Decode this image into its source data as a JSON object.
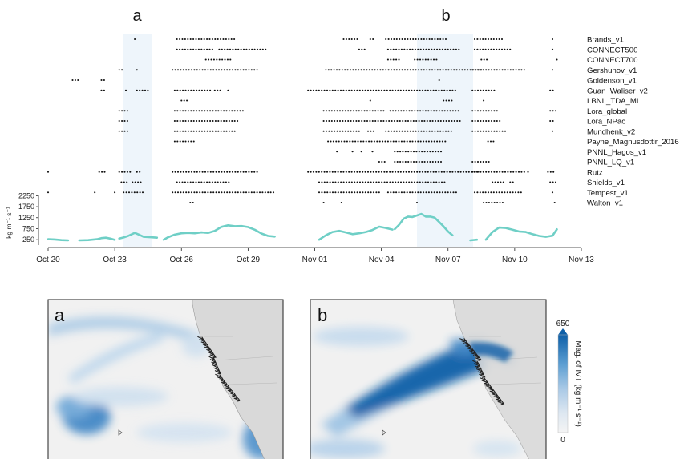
{
  "figure": {
    "panel_labels": [
      "a",
      "b"
    ],
    "map_panel_labels": [
      "a",
      "b"
    ]
  },
  "chart_data": [
    {
      "type": "scatter",
      "subtype": "event-timeline",
      "x_ticks": [
        "Oct 20",
        "Oct 23",
        "Oct 26",
        "Oct 29",
        "Nov 01",
        "Nov 04",
        "Nov 07",
        "Nov 10",
        "Nov 13"
      ],
      "x_range": [
        "2023-10-20",
        "2023-11-13"
      ],
      "highlight_windows": [
        {
          "label": "a",
          "start": "2023-10-23.3",
          "end": "2023-10-24.6"
        },
        {
          "label": "b",
          "start": "2023-11-05.8",
          "end": "2023-11-08.2"
        }
      ],
      "series": [
        {
          "name": "Brands_v1",
          "segments": [
            [
              23.9,
              24.0
            ],
            [
              25.8,
              28.4
            ],
            [
              33.3,
              34.0
            ],
            [
              34.5,
              34.7
            ],
            [
              35.2,
              38.0
            ],
            [
              39.2,
              40.5
            ],
            [
              42.7,
              42.8
            ]
          ]
        },
        {
          "name": "CONNECT500",
          "segments": [
            [
              25.8,
              27.4
            ],
            [
              27.7,
              29.8
            ],
            [
              34.0,
              34.3
            ],
            [
              35.3,
              38.5
            ],
            [
              39.2,
              40.8
            ],
            [
              42.7,
              42.8
            ]
          ]
        },
        {
          "name": "CONNECT700",
          "segments": [
            [
              27.1,
              28.3
            ],
            [
              35.3,
              35.8
            ],
            [
              36.5,
              37.6
            ],
            [
              39.5,
              39.8
            ],
            [
              42.9,
              42.9
            ]
          ]
        },
        {
          "name": "Gershunov_v1",
          "segments": [
            [
              23.2,
              23.4
            ],
            [
              24.0,
              24.1
            ],
            [
              25.6,
              29.5
            ],
            [
              32.5,
              39.5
            ],
            [
              39.1,
              41.5
            ],
            [
              42.7,
              42.8
            ]
          ]
        },
        {
          "name": "Goldenson_v1",
          "segments": [
            [
              21.1,
              21.4
            ],
            [
              22.4,
              22.6
            ],
            [
              37.6,
              37.7
            ]
          ]
        },
        {
          "name": "Guan_Waliser_v2",
          "segments": [
            [
              22.4,
              22.6
            ],
            [
              23.5,
              23.6
            ],
            [
              24.0,
              24.5
            ],
            [
              25.7,
              27.3
            ],
            [
              27.5,
              27.8
            ],
            [
              28.1,
              28.2
            ],
            [
              31.7,
              38.4
            ],
            [
              39.1,
              40.2
            ],
            [
              42.6,
              42.8
            ]
          ]
        },
        {
          "name": "LBNL_TDA_ML",
          "segments": [
            [
              26.0,
              26.3
            ],
            [
              34.5,
              34.6
            ],
            [
              37.8,
              38.2
            ],
            [
              39.6,
              39.7
            ]
          ]
        },
        {
          "name": "Lora_global",
          "segments": [
            [
              23.2,
              23.6
            ],
            [
              25.7,
              28.8
            ],
            [
              32.4,
              35.2
            ],
            [
              35.4,
              38.5
            ],
            [
              39.1,
              40.3
            ],
            [
              42.6,
              42.9
            ]
          ]
        },
        {
          "name": "Lora_NPac",
          "segments": [
            [
              23.2,
              23.6
            ],
            [
              25.7,
              28.6
            ],
            [
              32.4,
              38.6
            ],
            [
              39.1,
              40.4
            ],
            [
              42.6,
              42.8
            ]
          ]
        },
        {
          "name": "Mundhenk_v2",
          "segments": [
            [
              23.2,
              23.6
            ],
            [
              25.7,
              28.5
            ],
            [
              32.4,
              34.0
            ],
            [
              34.4,
              34.7
            ],
            [
              35.2,
              38.2
            ],
            [
              39.1,
              40.6
            ],
            [
              42.7,
              42.8
            ]
          ]
        },
        {
          "name": "Payne_Magnusdottir_2016",
          "segments": [
            [
              25.7,
              26.6
            ],
            [
              32.6,
              37.9
            ],
            [
              39.8,
              40.1
            ]
          ]
        },
        {
          "name": "PNNL_Hagos_v1",
          "segments": [
            [
              33.0,
              33.1
            ],
            [
              33.7,
              33.8
            ],
            [
              34.1,
              34.2
            ],
            [
              34.6,
              34.7
            ],
            [
              35.6,
              37.8
            ]
          ]
        },
        {
          "name": "PNNL_LQ_v1",
          "segments": [
            [
              34.9,
              35.2
            ],
            [
              35.6,
              37.7
            ],
            [
              39.1,
              39.9
            ]
          ]
        },
        {
          "name": "Rutz",
          "segments": [
            [
              20.0,
              20.0
            ],
            [
              22.3,
              22.6
            ],
            [
              23.2,
              23.8
            ],
            [
              24.0,
              24.2
            ],
            [
              25.6,
              29.5
            ],
            [
              31.7,
              39.5
            ],
            [
              39.1,
              41.5
            ],
            [
              41.6,
              41.7
            ],
            [
              42.5,
              42.8
            ]
          ]
        },
        {
          "name": "Shields_v1",
          "segments": [
            [
              23.3,
              23.6
            ],
            [
              23.8,
              24.2
            ],
            [
              25.8,
              28.2
            ],
            [
              32.2,
              37.9
            ],
            [
              40.0,
              40.6
            ],
            [
              40.8,
              41.0
            ],
            [
              42.6,
              42.9
            ]
          ]
        },
        {
          "name": "Tempest_v1",
          "segments": [
            [
              20.0,
              20.0
            ],
            [
              22.1,
              22.1
            ],
            [
              23.0,
              23.1
            ],
            [
              23.4,
              24.3
            ],
            [
              25.6,
              30.2
            ],
            [
              32.2,
              34.9
            ],
            [
              35.3,
              38.4
            ],
            [
              39.2,
              41.3
            ],
            [
              42.7,
              42.8
            ]
          ]
        },
        {
          "name": "Walton_v1",
          "segments": [
            [
              26.4,
              26.6
            ],
            [
              32.4,
              32.5
            ],
            [
              33.2,
              33.3
            ],
            [
              36.6,
              36.7
            ],
            [
              39.6,
              40.5
            ],
            [
              42.8,
              42.9
            ]
          ]
        }
      ]
    },
    {
      "type": "line",
      "ylabel": "kg m⁻¹ s⁻¹",
      "yticks": [
        250,
        750,
        1250,
        1750,
        2250
      ],
      "ylim": [
        0,
        2300
      ],
      "x_ticks": [
        "Oct 20",
        "Oct 23",
        "Oct 26",
        "Oct 29",
        "Nov 01",
        "Nov 04",
        "Nov 07",
        "Nov 10",
        "Nov 13"
      ],
      "color": "#6fcfc6",
      "segments": [
        {
          "x": [
            20.0,
            20.3,
            20.6,
            20.9
          ],
          "y": [
            270,
            260,
            230,
            220
          ]
        },
        {
          "x": [
            21.4,
            21.8,
            22.2,
            22.4,
            22.6,
            22.8,
            23.0
          ],
          "y": [
            220,
            230,
            270,
            320,
            340,
            300,
            240
          ]
        },
        {
          "x": [
            23.2,
            23.4,
            23.6,
            23.9,
            24.1,
            24.3,
            24.6,
            24.9
          ],
          "y": [
            300,
            350,
            420,
            560,
            470,
            380,
            360,
            340
          ]
        },
        {
          "x": [
            25.2,
            25.4,
            25.7,
            26.0,
            26.3,
            26.6,
            26.9,
            27.2,
            27.5,
            27.8,
            28.1,
            28.4,
            28.7,
            29.0,
            29.3,
            29.6,
            29.9,
            30.2
          ],
          "y": [
            250,
            360,
            480,
            540,
            560,
            540,
            580,
            560,
            650,
            830,
            900,
            860,
            870,
            820,
            700,
            530,
            420,
            390
          ]
        },
        {
          "x": [
            32.2,
            32.5,
            32.8,
            33.1,
            33.4,
            33.7,
            34.0,
            34.3,
            34.6,
            34.9,
            35.2,
            35.5
          ],
          "y": [
            250,
            450,
            600,
            650,
            580,
            500,
            540,
            600,
            690,
            840,
            780,
            710
          ]
        },
        {
          "x": [
            35.6,
            35.8,
            36.0,
            36.2,
            36.4,
            36.6,
            36.8,
            37.0,
            37.2,
            37.4,
            37.6,
            37.8,
            38.0,
            38.2
          ],
          "y": [
            730,
            930,
            1200,
            1300,
            1280,
            1350,
            1420,
            1300,
            1300,
            1250,
            1050,
            850,
            620,
            450
          ]
        },
        {
          "x": [
            39.0,
            39.3
          ],
          "y": [
            220,
            250
          ]
        },
        {
          "x": [
            39.7,
            40.0,
            40.3,
            40.6,
            40.9,
            41.2,
            41.5,
            41.8,
            42.1,
            42.4,
            42.7,
            42.9
          ],
          "y": [
            250,
            600,
            800,
            780,
            700,
            620,
            600,
            500,
            420,
            380,
            430,
            720
          ]
        }
      ]
    }
  ],
  "maps": [
    {
      "label": "a"
    },
    {
      "label": "b"
    }
  ],
  "colorbar": {
    "title": "Mag. of IVT (kg m⁻¹ s⁻¹)",
    "max_label": "650",
    "min_label": "0",
    "colors": [
      "#f4f4f4",
      "#dfe8f1",
      "#b9d3ea",
      "#7fb3dc",
      "#3f8ac6",
      "#0d5fa8"
    ]
  }
}
